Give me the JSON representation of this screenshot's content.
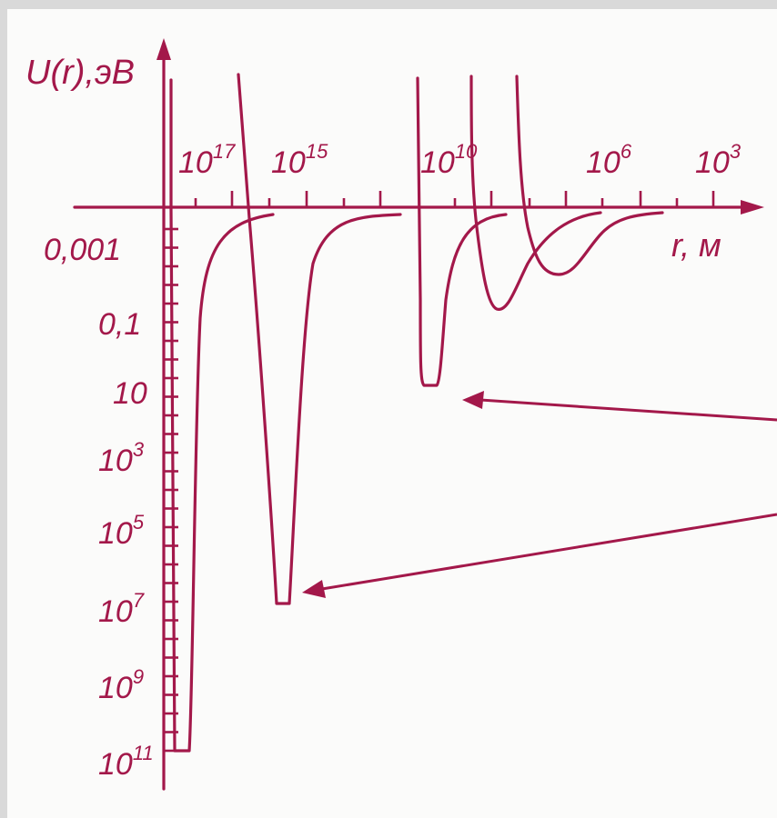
{
  "diagram": {
    "y_axis_label": "U(r),эВ",
    "x_axis_label": "r, м",
    "x_ticks": [
      {
        "base": "10",
        "exp": "17"
      },
      {
        "base": "10",
        "exp": "15"
      },
      {
        "base": "10",
        "exp": "10"
      },
      {
        "base": "10",
        "exp": "6"
      },
      {
        "base": "10",
        "exp": "3"
      }
    ],
    "y_ticks": [
      {
        "base": "0,001",
        "exp": ""
      },
      {
        "base": "0,1",
        "exp": ""
      },
      {
        "base": "10",
        "exp": ""
      },
      {
        "base": "10",
        "exp": "3"
      },
      {
        "base": "10",
        "exp": "5"
      },
      {
        "base": "10",
        "exp": "7"
      },
      {
        "base": "10",
        "exp": "9"
      },
      {
        "base": "10",
        "exp": "11"
      }
    ],
    "colors": {
      "ink": "#a3184a",
      "paper": "#fbfbfa",
      "frame": "#d9d9d9"
    }
  }
}
